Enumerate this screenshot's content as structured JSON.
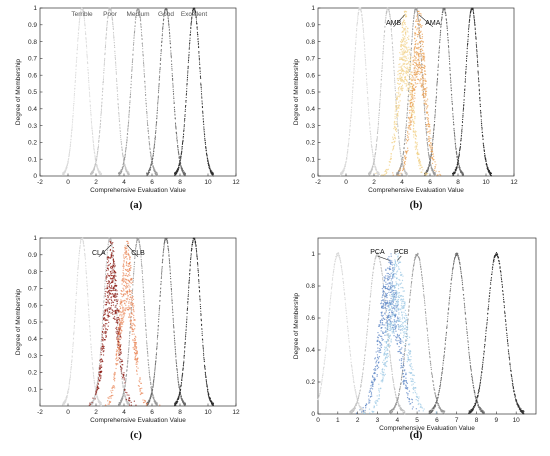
{
  "chart_data": [
    {
      "type": "scatter",
      "panel_label": "(a)",
      "xlabel": "Comprehensive Evaluation Value",
      "ylabel": "Degree of Membership",
      "xlim": [
        -2,
        12
      ],
      "ylim": [
        0,
        1
      ],
      "xticks": [
        -2,
        0,
        2,
        4,
        6,
        8,
        10,
        12
      ],
      "yticks": [
        0,
        0.1,
        0.2,
        0.3,
        0.4,
        0.5,
        0.6,
        0.7,
        0.8,
        0.9,
        1
      ],
      "grid": false,
      "series": [
        {
          "name": "Terrible",
          "center": 1,
          "peak": 1,
          "color": "#d9d9d9"
        },
        {
          "name": "Poor",
          "center": 3,
          "peak": 1,
          "color": "#c2c2c2"
        },
        {
          "name": "Medium",
          "center": 5,
          "peak": 1,
          "color": "#9a9a9a"
        },
        {
          "name": "Good",
          "center": 7,
          "peak": 1,
          "color": "#6a6a6a"
        },
        {
          "name": "Excellent",
          "center": 9,
          "peak": 1,
          "color": "#2e2e2e"
        }
      ],
      "annotations": []
    },
    {
      "type": "scatter",
      "panel_label": "(b)",
      "xlabel": "Comprehensive Evaluation Value",
      "ylabel": "Degree of Membership",
      "xlim": [
        -2,
        12
      ],
      "ylim": [
        0,
        1
      ],
      "xticks": [
        -2,
        0,
        2,
        4,
        6,
        8,
        10,
        12
      ],
      "yticks": [
        0,
        0.1,
        0.2,
        0.3,
        0.4,
        0.5,
        0.6,
        0.7,
        0.8,
        0.9,
        1
      ],
      "grid": false,
      "series": [
        {
          "center": 1,
          "peak": 1,
          "color": "#d9d9d9"
        },
        {
          "center": 3,
          "peak": 1,
          "color": "#c2c2c2"
        },
        {
          "center": 5,
          "peak": 1,
          "color": "#9a9a9a"
        },
        {
          "center": 7,
          "peak": 1,
          "color": "#6a6a6a"
        },
        {
          "center": 9,
          "peak": 1,
          "color": "#2e2e2e"
        },
        {
          "name": "AMB",
          "center": 4.2,
          "peak": 1,
          "color": "#f2d28a"
        },
        {
          "name": "AMA",
          "center": 5.2,
          "peak": 1,
          "color": "#e8a055"
        }
      ],
      "annotations": [
        {
          "text": "AMB",
          "x": 3.4,
          "y": 0.9
        },
        {
          "text": "AMA",
          "x": 6.2,
          "y": 0.9
        }
      ]
    },
    {
      "type": "scatter",
      "panel_label": "(c)",
      "xlabel": "Comprehensive Evaluation Value",
      "ylabel": "Degree of Membership",
      "xlim": [
        -2,
        12
      ],
      "ylim": [
        0,
        1
      ],
      "xticks": [
        -2,
        0,
        2,
        4,
        6,
        8,
        10,
        12
      ],
      "yticks": [
        0.1,
        0.2,
        0.3,
        0.4,
        0.5,
        0.6,
        0.7,
        0.8,
        0.9,
        1
      ],
      "grid": false,
      "series": [
        {
          "center": 1,
          "peak": 1,
          "color": "#d9d9d9"
        },
        {
          "center": 3,
          "peak": 1,
          "color": "#c2c2c2"
        },
        {
          "center": 5,
          "peak": 1,
          "color": "#9a9a9a"
        },
        {
          "center": 7,
          "peak": 1,
          "color": "#6a6a6a"
        },
        {
          "center": 9,
          "peak": 1,
          "color": "#2e2e2e"
        },
        {
          "name": "CLA",
          "center": 3.1,
          "peak": 1,
          "color": "#8b1a12"
        },
        {
          "name": "CLB",
          "center": 4.2,
          "peak": 1,
          "color": "#ea8a5c"
        }
      ],
      "annotations": [
        {
          "text": "CLA",
          "x": 2.2,
          "y": 0.9
        },
        {
          "text": "CLB",
          "x": 5.0,
          "y": 0.9
        }
      ]
    },
    {
      "type": "scatter",
      "panel_label": "(d)",
      "xlabel": "Comprehensive Evaluation Value",
      "ylabel": "Degree of Membership",
      "xlim": [
        0,
        11
      ],
      "ylim": [
        0,
        1.1
      ],
      "xticks": [
        0,
        1,
        2,
        3,
        4,
        5,
        6,
        7,
        8,
        9,
        10
      ],
      "yticks": [
        0,
        0.2,
        0.4,
        0.6,
        0.8,
        1
      ],
      "grid": false,
      "series": [
        {
          "center": 1,
          "peak": 1,
          "color": "#d9d9d9"
        },
        {
          "center": 3,
          "peak": 1,
          "color": "#c2c2c2"
        },
        {
          "center": 5,
          "peak": 1,
          "color": "#9a9a9a"
        },
        {
          "center": 7,
          "peak": 1,
          "color": "#6a6a6a"
        },
        {
          "center": 9,
          "peak": 1,
          "color": "#2e2e2e"
        },
        {
          "name": "PCA",
          "center": 3.6,
          "peak": 1,
          "color": "#5b84c4"
        },
        {
          "name": "PCB",
          "center": 4.0,
          "peak": 1,
          "color": "#9cc8e4"
        }
      ],
      "annotations": [
        {
          "text": "PCA",
          "x": 3.0,
          "y": 1.0
        },
        {
          "text": "PCB",
          "x": 4.2,
          "y": 1.0
        }
      ]
    }
  ]
}
